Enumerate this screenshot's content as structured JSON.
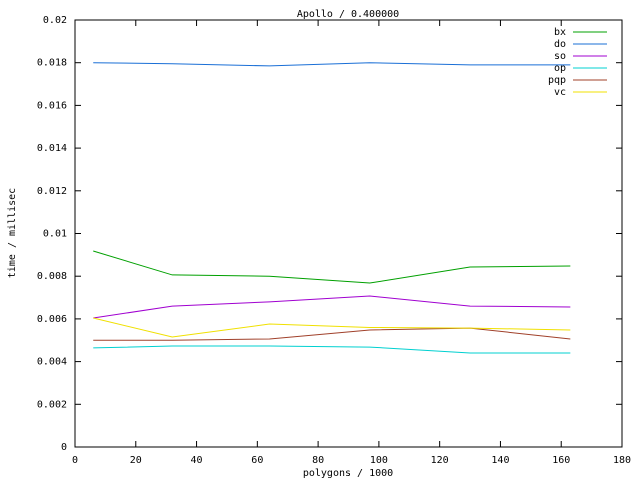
{
  "chart_data": {
    "type": "line",
    "title": "Apollo / 0.400000",
    "x_label": "polygons / 1000",
    "y_label": "time / millisec",
    "x": [
      6,
      32,
      64,
      97,
      130,
      163
    ],
    "series": [
      {
        "name": "bx",
        "color": "#00a000",
        "values": [
          0.00918,
          0.00806,
          0.008,
          0.00768,
          0.00843,
          0.00848
        ]
      },
      {
        "name": "do",
        "color": "#1a6fd6",
        "values": [
          0.018,
          0.01795,
          0.01785,
          0.018,
          0.0179,
          0.0179
        ]
      },
      {
        "name": "so",
        "color": "#a000d0",
        "values": [
          0.00604,
          0.0066,
          0.0068,
          0.00707,
          0.0066,
          0.00656
        ]
      },
      {
        "name": "op",
        "color": "#00d0d0",
        "values": [
          0.00464,
          0.00473,
          0.00473,
          0.00468,
          0.0044,
          0.0044
        ]
      },
      {
        "name": "pqp",
        "color": "#a0402a",
        "values": [
          0.005,
          0.005,
          0.00506,
          0.00548,
          0.00557,
          0.00506
        ]
      },
      {
        "name": "vc",
        "color": "#f0e000",
        "values": [
          0.00604,
          0.00515,
          0.00576,
          0.0056,
          0.00557,
          0.00548
        ]
      }
    ],
    "xlim": [
      0,
      180
    ],
    "xticks": [
      0,
      20,
      40,
      60,
      80,
      100,
      120,
      140,
      160,
      180
    ],
    "ylim": [
      0,
      0.02
    ],
    "yticks": [
      0,
      0.002,
      0.004,
      0.006,
      0.008,
      0.01,
      0.012,
      0.014,
      0.016,
      0.018,
      0.02
    ],
    "legend": "top-right"
  }
}
